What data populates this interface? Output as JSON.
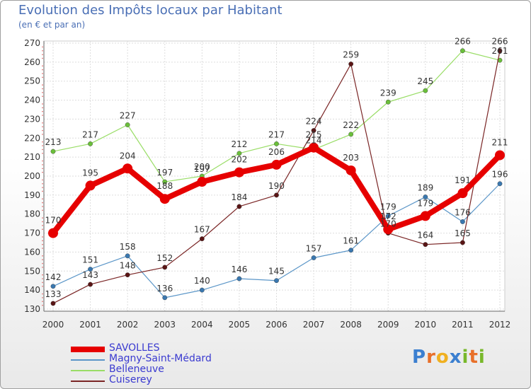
{
  "chart_data": {
    "type": "line",
    "title": "Evolution des Impôts locaux par Habitant",
    "subtitle": "(en € et par an)",
    "xlabel": "",
    "ylabel": "",
    "categories": [
      "2000",
      "2001",
      "2002",
      "2003",
      "2004",
      "2005",
      "2006",
      "2007",
      "2008",
      "2009",
      "2010",
      "2011",
      "2012"
    ],
    "ylim": [
      130,
      270
    ],
    "yticks": [
      130,
      140,
      150,
      160,
      170,
      180,
      190,
      200,
      210,
      220,
      230,
      240,
      250,
      260,
      270
    ],
    "grid": true,
    "legend_position": "bottom-left",
    "series": [
      {
        "name": "SAVOLLES",
        "color": "#e60000",
        "values": [
          170,
          195,
          204,
          188,
          197,
          202,
          206,
          215,
          203,
          172,
          179,
          191,
          211
        ]
      },
      {
        "name": "Magny-Saint-Médard",
        "color": "#5b96c8",
        "values": [
          142,
          151,
          158,
          136,
          140,
          146,
          145,
          157,
          161,
          179,
          189,
          176,
          196
        ]
      },
      {
        "name": "Belleneuve",
        "color": "#99dd66",
        "values": [
          213,
          217,
          227,
          197,
          200,
          212,
          217,
          214,
          222,
          239,
          245,
          266,
          261
        ]
      },
      {
        "name": "Cuiserey",
        "color": "#7a2525",
        "values": [
          133,
          143,
          148,
          152,
          167,
          184,
          190,
          224,
          259,
          170,
          164,
          165,
          266
        ]
      }
    ]
  },
  "logo": {
    "letters": [
      "P",
      "r",
      "o",
      "x",
      "i",
      "t",
      "i"
    ],
    "colors": [
      "#3b7fd0",
      "#e8702a",
      "#f0b020",
      "#3b7fd0",
      "#78b82a",
      "#e8702a",
      "#78b82a"
    ]
  }
}
